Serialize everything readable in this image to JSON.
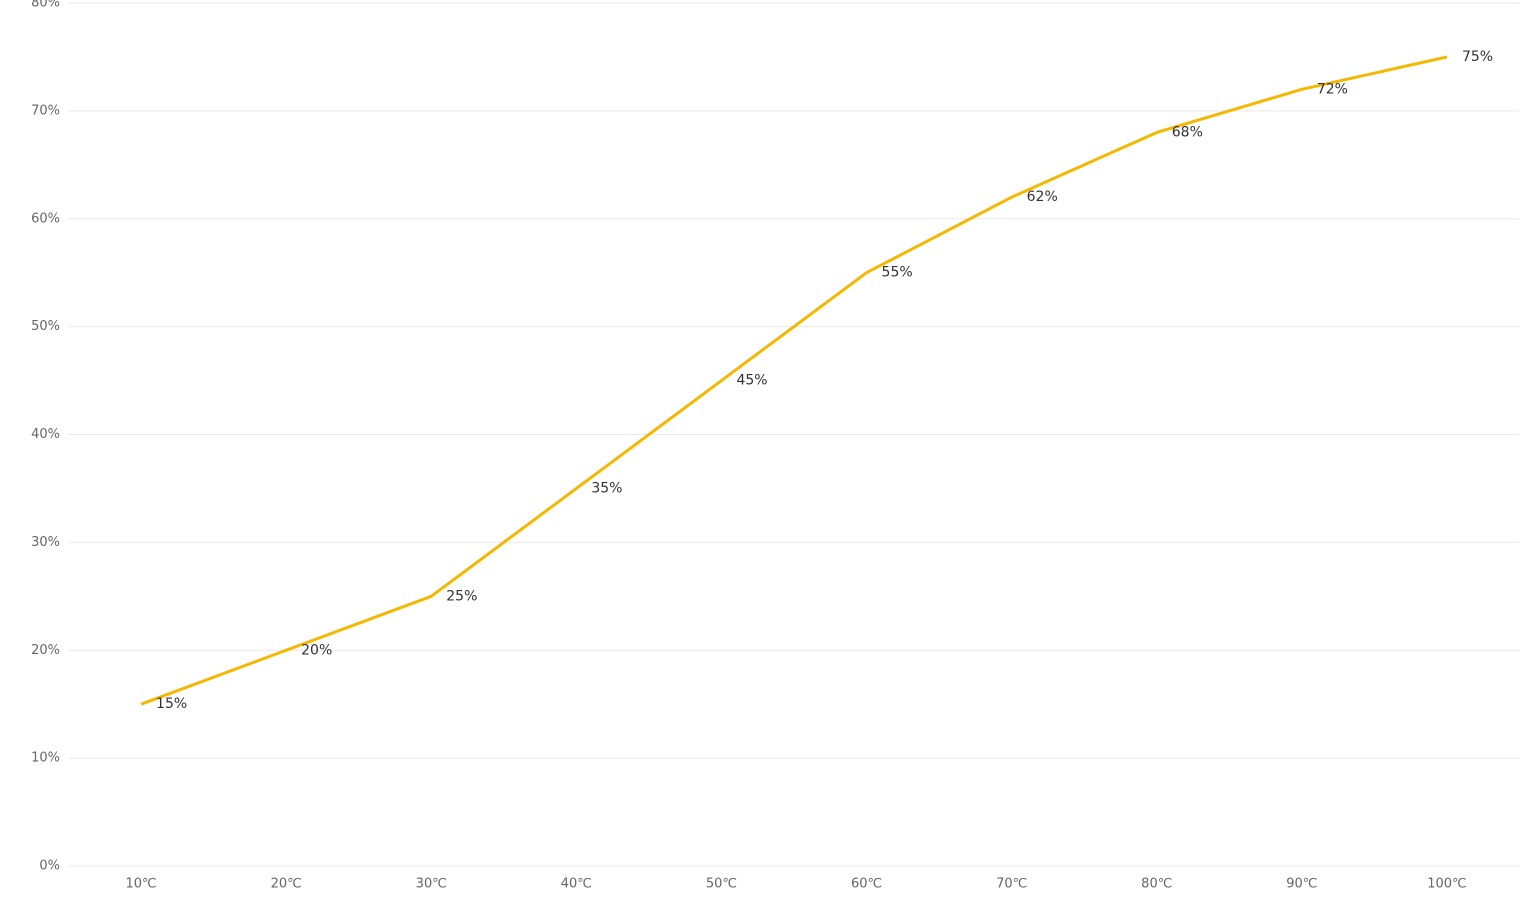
{
  "chart_data": {
    "type": "line",
    "categories": [
      "10℃",
      "20℃",
      "30℃",
      "40℃",
      "50℃",
      "60℃",
      "70℃",
      "80℃",
      "90℃",
      "100℃"
    ],
    "values": [
      15,
      20,
      25,
      35,
      45,
      55,
      62,
      68,
      72,
      75
    ],
    "value_labels": [
      "15%",
      "20%",
      "25%",
      "35%",
      "45%",
      "55%",
      "62%",
      "68%",
      "72%",
      "75%"
    ],
    "color": "#f5b700",
    "ylim": [
      0,
      80
    ],
    "yticks": [
      {
        "value": 0,
        "label": "0%"
      },
      {
        "value": 10,
        "label": "10%"
      },
      {
        "value": 20,
        "label": "20%"
      },
      {
        "value": 30,
        "label": "30%"
      },
      {
        "value": 40,
        "label": "40%"
      },
      {
        "value": 50,
        "label": "50%"
      },
      {
        "value": 60,
        "label": "60%"
      },
      {
        "value": 70,
        "label": "70%"
      },
      {
        "value": 80,
        "label": "80%"
      }
    ],
    "grid": true
  }
}
